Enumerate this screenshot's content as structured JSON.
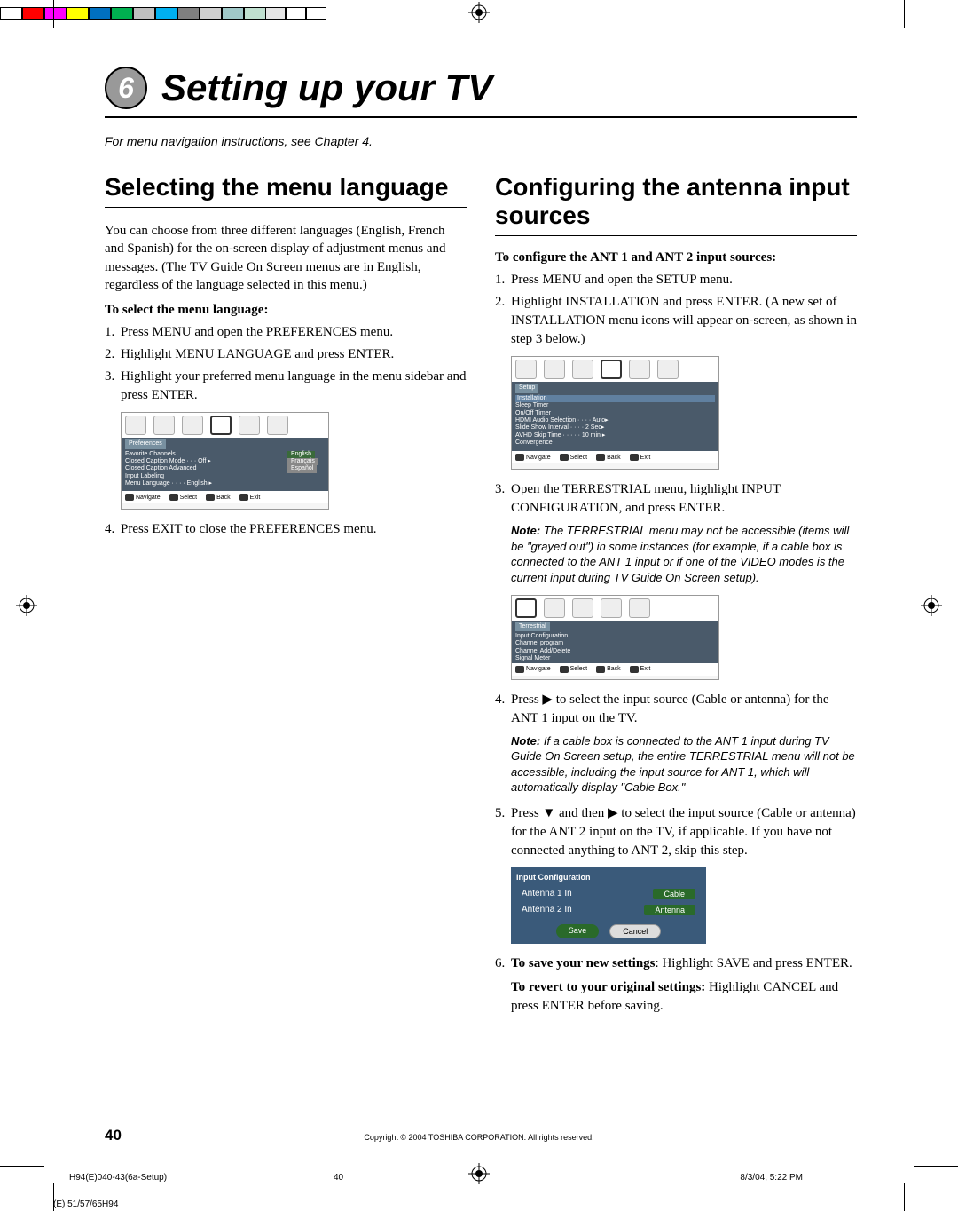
{
  "colorBars": [
    "#000000",
    "#000000",
    "#5a5a5a",
    "#000000",
    "#5a5a5a",
    "#5a5a5a",
    "#929292",
    "#929292",
    "#bababa",
    "#d0d0d0",
    "#e5e5e5",
    "#ffffff",
    "#ffffff"
  ],
  "colorBarsRight": [
    "#ffffff",
    "#ff0000",
    "#ff00ff",
    "#ffff00",
    "#0070c0",
    "#00b050",
    "#bfbfbf",
    "#00b0f0",
    "#7f7f7f",
    "#d0d0d0",
    "#a0c8c8",
    "#c0e0d0"
  ],
  "chapter": {
    "number": "6",
    "title": "Setting up your TV",
    "subtitle": "For menu navigation instructions, see Chapter 4."
  },
  "leftCol": {
    "sectionTitle": "Selecting the menu language",
    "intro": "You can choose from three different languages (English, French and Spanish) for the on-screen display of adjustment menus and messages. (The TV Guide On Screen menus are in English, regardless of the language selected in this menu.)",
    "subhead": "To select the menu language:",
    "steps": [
      "Press MENU and open the PREFERENCES menu.",
      "Highlight MENU LANGUAGE and press ENTER.",
      "Highlight your preferred menu language in the menu sidebar and press ENTER.",
      "Press EXIT to close the PREFERENCES menu."
    ],
    "menu": {
      "headerTab": "Preferences",
      "items": [
        "Favorite Channels",
        "Closed Caption Mode · · · Off ▸",
        "Closed Caption Advanced",
        "Input Labeling",
        "Menu Language · · · · English ▸"
      ],
      "options": [
        "English",
        "Français",
        "Español"
      ],
      "footer": [
        "Navigate",
        "Select",
        "Back",
        "Exit"
      ]
    }
  },
  "rightCol": {
    "sectionTitle": "Configuring the antenna input sources",
    "subhead": "To configure the ANT 1 and ANT 2 input sources:",
    "step1": "Press MENU and open the SETUP menu.",
    "step2": "Highlight INSTALLATION and press ENTER. (A new set of INSTALLATION menu icons will appear on-screen, as shown in step 3 below.)",
    "menu1": {
      "headerTab": "Setup",
      "items": [
        "Installation",
        "Sleep Timer",
        "On/Off Timer",
        "HDMI Audio Selection · · · · Auto▸",
        "Slide Show Interval · · · · 2 Sec▸",
        "AVHD Skip Time · · · · · 10 min ▸",
        "Convergence"
      ],
      "footer": [
        "Navigate",
        "Select",
        "Back",
        "Exit"
      ]
    },
    "step3": "Open the TERRESTRIAL menu, highlight INPUT CONFIGURATION, and press ENTER.",
    "note3": "The TERRESTRIAL menu may not be accessible (items will be \"grayed out\") in some instances (for example, if a cable box is connected to the ANT 1 input or if one of the VIDEO modes is the current input during TV Guide On Screen setup).",
    "menu2": {
      "headerTab": "Terrestrial",
      "items": [
        "Input Configuration",
        "Channel program",
        "Channel Add/Delete",
        "Signal Meter"
      ],
      "footer": [
        "Navigate",
        "Select",
        "Back",
        "Exit"
      ]
    },
    "step4": "Press ▶ to select the input source (Cable or antenna) for the ANT 1 input on the TV.",
    "note4": "If a cable box is connected to the ANT 1 input during TV Guide On Screen setup, the entire TERRESTRIAL menu will not be accessible, including the input source for ANT 1, which will automatically display \"Cable Box.\"",
    "step5": "Press ▼ and then ▶ to select the input source (Cable or antenna) for the ANT 2 input on the TV, if applicable. If you have not connected anything to ANT 2, skip this step.",
    "inputConfig": {
      "title": "Input Configuration",
      "row1Label": "Antenna 1 In",
      "row1Value": "Cable",
      "row2Label": "Antenna 2 In",
      "row2Value": "Antenna",
      "save": "Save",
      "cancel": "Cancel"
    },
    "step6a": "To save your new settings",
    "step6b": ": Highlight SAVE and press ENTER.",
    "step6c": "To revert to your original settings:",
    "step6d": " Highlight CANCEL and press ENTER before saving."
  },
  "footer": {
    "pageNumber": "40",
    "copyright": "Copyright © 2004 TOSHIBA CORPORATION. All rights reserved.",
    "printLeft": "H94(E)040-43(6a-Setup)",
    "printCenter": "40",
    "printRight": "8/3/04, 5:22 PM",
    "printBottomLeft": "(E) 51/57/65H94"
  },
  "noteLabel": "Note:"
}
